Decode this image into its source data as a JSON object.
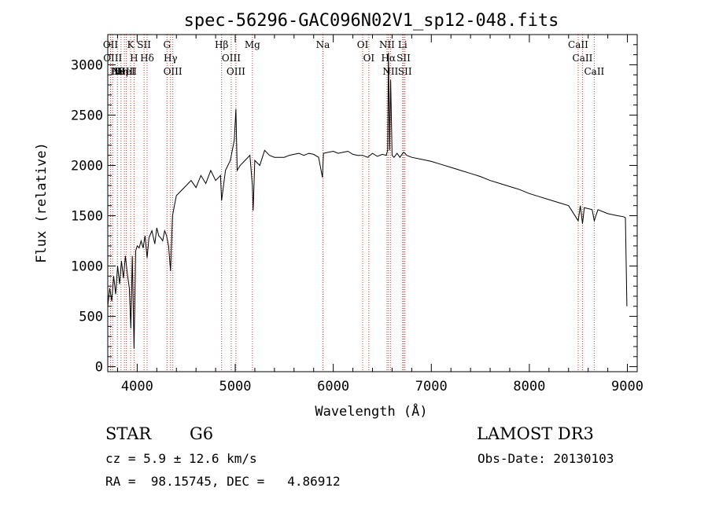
{
  "chart_data": {
    "type": "line",
    "title": "spec-56296-GAC096N02V1_sp12-048.fits",
    "xlabel": "Wavelength (Å)",
    "ylabel": "Flux (relative)",
    "xlim": [
      3700,
      9100
    ],
    "ylim": [
      -50,
      3300
    ],
    "xticks": [
      4000,
      5000,
      6000,
      7000,
      8000,
      9000
    ],
    "yticks": [
      0,
      500,
      1000,
      1500,
      2000,
      2500,
      3000
    ],
    "grid": false,
    "series": [
      {
        "name": "spectrum",
        "x": [
          3700,
          3720,
          3740,
          3760,
          3780,
          3800,
          3820,
          3840,
          3860,
          3880,
          3900,
          3920,
          3935,
          3950,
          3968,
          3985,
          4000,
          4020,
          4040,
          4060,
          4080,
          4101,
          4120,
          4150,
          4180,
          4200,
          4220,
          4240,
          4260,
          4280,
          4300,
          4320,
          4340,
          4360,
          4380,
          4400,
          4450,
          4500,
          4550,
          4600,
          4650,
          4700,
          4750,
          4800,
          4850,
          4861,
          4900,
          4950,
          4990,
          5007,
          5020,
          5050,
          5100,
          5150,
          5175,
          5183,
          5200,
          5250,
          5300,
          5350,
          5400,
          5450,
          5500,
          5550,
          5600,
          5650,
          5700,
          5750,
          5800,
          5850,
          5890,
          5900,
          5950,
          6000,
          6050,
          6100,
          6150,
          6200,
          6250,
          6300,
          6350,
          6400,
          6450,
          6500,
          6540,
          6555,
          6563,
          6575,
          6585,
          6600,
          6620,
          6650,
          6680,
          6700,
          6717,
          6731,
          6750,
          6800,
          6900,
          7000,
          7100,
          7200,
          7300,
          7400,
          7500,
          7600,
          7700,
          7800,
          7900,
          8000,
          8100,
          8200,
          8300,
          8400,
          8498,
          8520,
          8542,
          8560,
          8600,
          8640,
          8662,
          8700,
          8800,
          8900,
          8960,
          8980,
          8995
        ],
        "values": [
          600,
          780,
          650,
          900,
          720,
          1000,
          820,
          1050,
          880,
          1100,
          920,
          780,
          380,
          1100,
          180,
          1150,
          1200,
          1180,
          1250,
          1180,
          1300,
          1080,
          1280,
          1350,
          1220,
          1380,
          1300,
          1280,
          1250,
          1350,
          1300,
          1200,
          950,
          1500,
          1600,
          1700,
          1750,
          1800,
          1850,
          1780,
          1900,
          1820,
          1950,
          1850,
          1900,
          1650,
          1950,
          2050,
          2250,
          2560,
          1950,
          2000,
          2050,
          2100,
          1800,
          1550,
          2050,
          2000,
          2150,
          2100,
          2080,
          2080,
          2080,
          2100,
          2110,
          2120,
          2100,
          2120,
          2110,
          2080,
          1880,
          2120,
          2130,
          2140,
          2120,
          2130,
          2140,
          2110,
          2100,
          2100,
          2080,
          2120,
          2090,
          2110,
          2100,
          2150,
          3120,
          2150,
          2850,
          2100,
          2080,
          2120,
          2080,
          2110,
          2130,
          2120,
          2100,
          2080,
          2060,
          2040,
          2010,
          1980,
          1950,
          1920,
          1890,
          1850,
          1820,
          1790,
          1760,
          1720,
          1690,
          1660,
          1630,
          1600,
          1450,
          1600,
          1420,
          1580,
          1570,
          1560,
          1450,
          1560,
          1520,
          1500,
          1490,
          1480,
          600
        ],
        "color": "#000000"
      }
    ],
    "line_markers": [
      {
        "wl": 3728,
        "label": "OII"
      },
      {
        "wl": 3750,
        "label": "OIII"
      },
      {
        "wl": 3798,
        "label": "Hθ"
      },
      {
        "wl": 3835,
        "label": "Hη"
      },
      {
        "wl": 3869,
        "label": "NeIII"
      },
      {
        "wl": 3889,
        "label": "HeI"
      },
      {
        "wl": 3933,
        "label": "K"
      },
      {
        "wl": 3968,
        "label": "H"
      },
      {
        "wl": 4070,
        "label": "SII"
      },
      {
        "wl": 4101,
        "label": "Hδ"
      },
      {
        "wl": 4304,
        "label": "G"
      },
      {
        "wl": 4340,
        "label": "Hγ"
      },
      {
        "wl": 4363,
        "label": "OIII"
      },
      {
        "wl": 4861,
        "label": "Hβ"
      },
      {
        "wl": 4959,
        "label": "OIII"
      },
      {
        "wl": 5007,
        "label": "OIII"
      },
      {
        "wl": 5175,
        "label": "Mg"
      },
      {
        "wl": 5894,
        "label": "Na"
      },
      {
        "wl": 6300,
        "label": "OI"
      },
      {
        "wl": 6363,
        "label": "OI"
      },
      {
        "wl": 6548,
        "label": "NII"
      },
      {
        "wl": 6563,
        "label": "Hα"
      },
      {
        "wl": 6583,
        "label": "NII"
      },
      {
        "wl": 6707,
        "label": "Li"
      },
      {
        "wl": 6717,
        "label": "SII"
      },
      {
        "wl": 6731,
        "label": "SII"
      },
      {
        "wl": 8498,
        "label": "CaII"
      },
      {
        "wl": 8542,
        "label": "CaII"
      },
      {
        "wl": 8662,
        "label": "CaII"
      }
    ],
    "line_color": "#c0392b"
  },
  "info": {
    "object_class": "STAR",
    "subclass": "G6",
    "survey": "LAMOST DR3",
    "cz": "cz = 5.9 ± 12.6 km/s",
    "obs_date": "Obs-Date: 20130103",
    "coords": "RA =  98.15745, DEC =   4.86912"
  }
}
